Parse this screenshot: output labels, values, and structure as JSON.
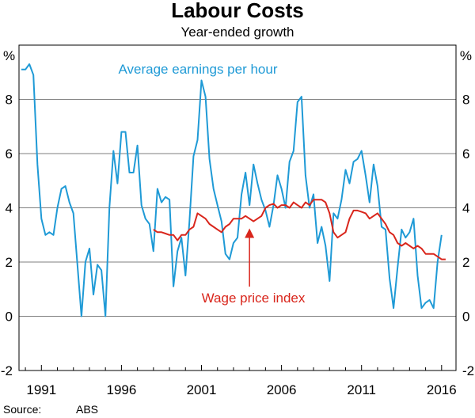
{
  "chart_data": {
    "type": "line",
    "title": "Labour Costs",
    "subtitle": "Year-ended growth",
    "unit_left": "%",
    "unit_right": "%",
    "source_label": "Source:",
    "source_value": "ABS",
    "ylim": [
      -2,
      10
    ],
    "yticks": [
      "-2",
      "0",
      "2",
      "4",
      "6",
      "8"
    ],
    "ytick_values": [
      -2,
      0,
      2,
      4,
      6,
      8
    ],
    "xlim": [
      1989.6,
      2016.9
    ],
    "xticks": [
      "1991",
      "1996",
      "2001",
      "2006",
      "2011",
      "2016"
    ],
    "xtick_values": [
      1991,
      1996,
      2001,
      2006,
      2011,
      2016
    ],
    "grid": true,
    "colors": {
      "blue": "#1f9ad6",
      "red": "#d9261c"
    },
    "series": [
      {
        "name": "Average earnings per hour",
        "color": "#1f9ad6",
        "points": [
          [
            1989.75,
            9.1
          ],
          [
            1990.0,
            9.1
          ],
          [
            1990.25,
            9.3
          ],
          [
            1990.5,
            8.9
          ],
          [
            1990.75,
            5.6
          ],
          [
            1991.0,
            3.6
          ],
          [
            1991.25,
            3.0
          ],
          [
            1991.5,
            3.1
          ],
          [
            1991.75,
            3.0
          ],
          [
            1992.0,
            4.0
          ],
          [
            1992.25,
            4.7
          ],
          [
            1992.5,
            4.8
          ],
          [
            1992.75,
            4.2
          ],
          [
            1993.0,
            3.8
          ],
          [
            1993.5,
            0.0
          ],
          [
            1993.75,
            2.0
          ],
          [
            1994.0,
            2.5
          ],
          [
            1994.25,
            0.8
          ],
          [
            1994.5,
            1.9
          ],
          [
            1994.75,
            1.7
          ],
          [
            1995.0,
            0.0
          ],
          [
            1995.25,
            4.0
          ],
          [
            1995.5,
            6.1
          ],
          [
            1995.75,
            4.9
          ],
          [
            1996.0,
            6.8
          ],
          [
            1996.25,
            6.8
          ],
          [
            1996.5,
            5.3
          ],
          [
            1996.75,
            5.3
          ],
          [
            1997.0,
            6.3
          ],
          [
            1997.25,
            4.1
          ],
          [
            1997.5,
            3.6
          ],
          [
            1997.75,
            3.4
          ],
          [
            1998.0,
            2.4
          ],
          [
            1998.25,
            4.7
          ],
          [
            1998.5,
            4.2
          ],
          [
            1998.75,
            4.4
          ],
          [
            1999.0,
            4.3
          ],
          [
            1999.25,
            1.1
          ],
          [
            1999.5,
            2.4
          ],
          [
            1999.75,
            2.9
          ],
          [
            2000.0,
            1.5
          ],
          [
            2000.25,
            3.5
          ],
          [
            2000.5,
            5.9
          ],
          [
            2000.75,
            6.5
          ],
          [
            2001.0,
            8.7
          ],
          [
            2001.25,
            8.1
          ],
          [
            2001.5,
            5.8
          ],
          [
            2001.75,
            4.7
          ],
          [
            2002.0,
            4.1
          ],
          [
            2002.25,
            3.5
          ],
          [
            2002.5,
            2.3
          ],
          [
            2002.75,
            2.1
          ],
          [
            2003.0,
            2.7
          ],
          [
            2003.25,
            2.9
          ],
          [
            2003.5,
            4.5
          ],
          [
            2003.75,
            5.3
          ],
          [
            2004.0,
            4.1
          ],
          [
            2004.25,
            5.6
          ],
          [
            2004.5,
            4.9
          ],
          [
            2004.75,
            4.3
          ],
          [
            2005.0,
            3.9
          ],
          [
            2005.25,
            3.3
          ],
          [
            2005.5,
            4.1
          ],
          [
            2005.75,
            5.2
          ],
          [
            2006.0,
            4.7
          ],
          [
            2006.25,
            4.0
          ],
          [
            2006.5,
            5.7
          ],
          [
            2006.75,
            6.1
          ],
          [
            2007.0,
            7.9
          ],
          [
            2007.25,
            8.1
          ],
          [
            2007.5,
            5.2
          ],
          [
            2007.75,
            4.0
          ],
          [
            2008.0,
            4.5
          ],
          [
            2008.25,
            2.7
          ],
          [
            2008.5,
            3.3
          ],
          [
            2008.75,
            2.6
          ],
          [
            2009.0,
            1.3
          ],
          [
            2009.25,
            3.8
          ],
          [
            2009.5,
            3.6
          ],
          [
            2009.75,
            4.3
          ],
          [
            2010.0,
            5.4
          ],
          [
            2010.25,
            4.9
          ],
          [
            2010.5,
            5.7
          ],
          [
            2010.75,
            5.8
          ],
          [
            2011.0,
            6.1
          ],
          [
            2011.25,
            5.2
          ],
          [
            2011.5,
            4.2
          ],
          [
            2011.75,
            5.6
          ],
          [
            2012.0,
            4.8
          ],
          [
            2012.25,
            3.3
          ],
          [
            2012.5,
            3.2
          ],
          [
            2012.75,
            1.4
          ],
          [
            2013.0,
            0.3
          ],
          [
            2013.25,
            1.8
          ],
          [
            2013.5,
            3.2
          ],
          [
            2013.75,
            2.9
          ],
          [
            2014.0,
            3.1
          ],
          [
            2014.25,
            3.6
          ],
          [
            2014.5,
            1.5
          ],
          [
            2014.75,
            0.3
          ],
          [
            2015.0,
            0.5
          ],
          [
            2015.25,
            0.6
          ],
          [
            2015.5,
            0.3
          ],
          [
            2015.75,
            2.0
          ],
          [
            2016.0,
            3.0
          ]
        ]
      },
      {
        "name": "Wage price index",
        "color": "#d9261c",
        "points": [
          [
            1998.0,
            3.2
          ],
          [
            1998.25,
            3.1
          ],
          [
            1998.5,
            3.1
          ],
          [
            1998.75,
            3.05
          ],
          [
            1999.0,
            3.0
          ],
          [
            1999.25,
            3.0
          ],
          [
            1999.5,
            2.8
          ],
          [
            1999.75,
            3.0
          ],
          [
            2000.0,
            3.0
          ],
          [
            2000.25,
            3.2
          ],
          [
            2000.5,
            3.3
          ],
          [
            2000.75,
            3.8
          ],
          [
            2001.0,
            3.7
          ],
          [
            2001.25,
            3.6
          ],
          [
            2001.5,
            3.4
          ],
          [
            2001.75,
            3.3
          ],
          [
            2002.0,
            3.2
          ],
          [
            2002.25,
            3.1
          ],
          [
            2002.5,
            3.3
          ],
          [
            2002.75,
            3.4
          ],
          [
            2003.0,
            3.6
          ],
          [
            2003.25,
            3.6
          ],
          [
            2003.5,
            3.6
          ],
          [
            2003.75,
            3.7
          ],
          [
            2004.0,
            3.6
          ],
          [
            2004.25,
            3.5
          ],
          [
            2004.5,
            3.6
          ],
          [
            2004.75,
            3.7
          ],
          [
            2005.0,
            4.0
          ],
          [
            2005.25,
            4.1
          ],
          [
            2005.5,
            4.15
          ],
          [
            2005.75,
            4.0
          ],
          [
            2006.0,
            4.1
          ],
          [
            2006.25,
            4.1
          ],
          [
            2006.5,
            4.0
          ],
          [
            2006.75,
            4.2
          ],
          [
            2007.0,
            4.1
          ],
          [
            2007.25,
            4.0
          ],
          [
            2007.5,
            4.2
          ],
          [
            2007.75,
            4.1
          ],
          [
            2008.0,
            4.3
          ],
          [
            2008.25,
            4.3
          ],
          [
            2008.5,
            4.3
          ],
          [
            2008.75,
            4.2
          ],
          [
            2009.0,
            3.8
          ],
          [
            2009.25,
            3.1
          ],
          [
            2009.5,
            2.9
          ],
          [
            2009.75,
            3.0
          ],
          [
            2010.0,
            3.1
          ],
          [
            2010.25,
            3.6
          ],
          [
            2010.5,
            3.9
          ],
          [
            2010.75,
            3.9
          ],
          [
            2011.0,
            3.85
          ],
          [
            2011.25,
            3.8
          ],
          [
            2011.5,
            3.6
          ],
          [
            2011.75,
            3.7
          ],
          [
            2012.0,
            3.8
          ],
          [
            2012.25,
            3.6
          ],
          [
            2012.5,
            3.4
          ],
          [
            2012.75,
            3.1
          ],
          [
            2013.0,
            3.0
          ],
          [
            2013.25,
            2.7
          ],
          [
            2013.5,
            2.6
          ],
          [
            2013.75,
            2.7
          ],
          [
            2014.0,
            2.6
          ],
          [
            2014.25,
            2.5
          ],
          [
            2014.5,
            2.6
          ],
          [
            2014.75,
            2.5
          ],
          [
            2015.0,
            2.3
          ],
          [
            2015.25,
            2.3
          ],
          [
            2015.5,
            2.3
          ],
          [
            2015.75,
            2.2
          ],
          [
            2016.0,
            2.1
          ],
          [
            2016.25,
            2.1
          ]
        ]
      }
    ],
    "annotations": [
      {
        "text": "Average earnings per hour",
        "color": "#1f9ad6"
      },
      {
        "text": "Wage price index",
        "color": "#d9261c",
        "arrow_to": [
          2004.0,
          3.3
        ]
      }
    ]
  }
}
